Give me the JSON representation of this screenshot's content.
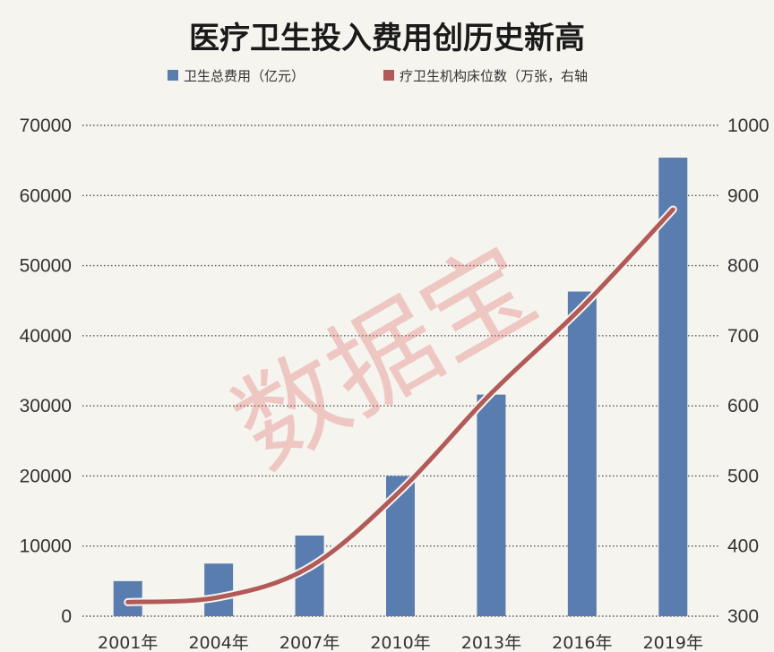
{
  "chart_data": {
    "type": "bar",
    "title": "医疗卫生投入费用创历史新高",
    "categories": [
      "2001年",
      "2004年",
      "2007年",
      "2010年",
      "2013年",
      "2016年",
      "2019年"
    ],
    "series": [
      {
        "name": "卫生总费用（亿元）",
        "type": "bar",
        "axis": "left",
        "color": "#5a7db0",
        "values": [
          5000,
          7500,
          11500,
          20000,
          31600,
          46300,
          65400
        ]
      },
      {
        "name": "疗卫生机构床位数（万张，右轴",
        "type": "line",
        "axis": "right",
        "color": "#b25a58",
        "values": [
          320,
          327,
          370,
          479,
          618,
          741,
          880
        ]
      }
    ],
    "y_left": {
      "ylim": [
        0,
        70000
      ],
      "ticks": [
        "0",
        "10000",
        "20000",
        "30000",
        "40000",
        "50000",
        "60000",
        "70000"
      ]
    },
    "y_right": {
      "ylim": [
        300,
        1000
      ],
      "ticks": [
        "300",
        "400",
        "500",
        "600",
        "700",
        "800",
        "900",
        "1000"
      ]
    },
    "grid": "dotted horizontal",
    "legend": "top",
    "watermark": "数据宝"
  }
}
